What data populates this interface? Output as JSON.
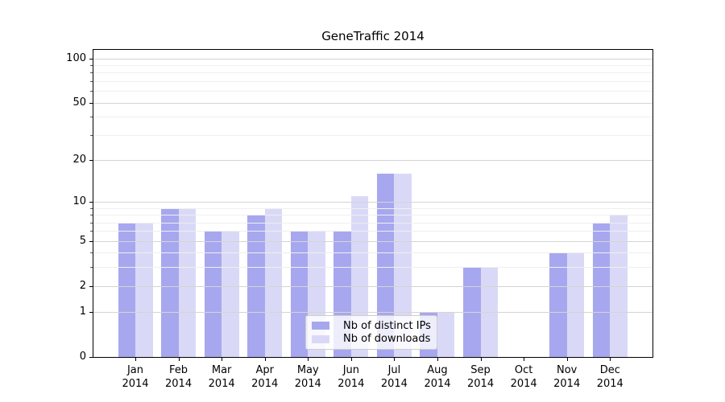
{
  "chart_data": {
    "type": "bar",
    "title": "GeneTraffic 2014",
    "categories": [
      "Jan",
      "Feb",
      "Mar",
      "Apr",
      "May",
      "Jun",
      "Jul",
      "Aug",
      "Sep",
      "Oct",
      "Nov",
      "Dec"
    ],
    "category_year": "2014",
    "series": [
      {
        "name": "Nb of distinct IPs",
        "color": "#a7a7ef",
        "values": [
          7,
          9,
          6,
          8,
          6,
          6,
          16,
          1,
          3,
          0,
          4,
          7
        ]
      },
      {
        "name": "Nb of downloads",
        "color": "#d9d9f7",
        "values": [
          7,
          9,
          6,
          9,
          6,
          11,
          16,
          1,
          3,
          0,
          4,
          8
        ]
      }
    ],
    "yscale": "log1p",
    "ylim": [
      0,
      116
    ],
    "yticks_major": [
      0,
      1,
      2,
      5,
      10,
      20,
      50,
      100
    ],
    "yticks_minor": [
      3,
      4,
      6,
      7,
      8,
      9,
      30,
      40,
      60,
      70,
      80,
      90
    ],
    "grid": true,
    "legend_position": "lower center"
  },
  "colors": {
    "background": "#ffffff",
    "spine": "#000000",
    "grid_major": "#d4d4d4",
    "grid_minor": "#efefef",
    "text": "#000000",
    "legend_border": "#cccccc"
  }
}
